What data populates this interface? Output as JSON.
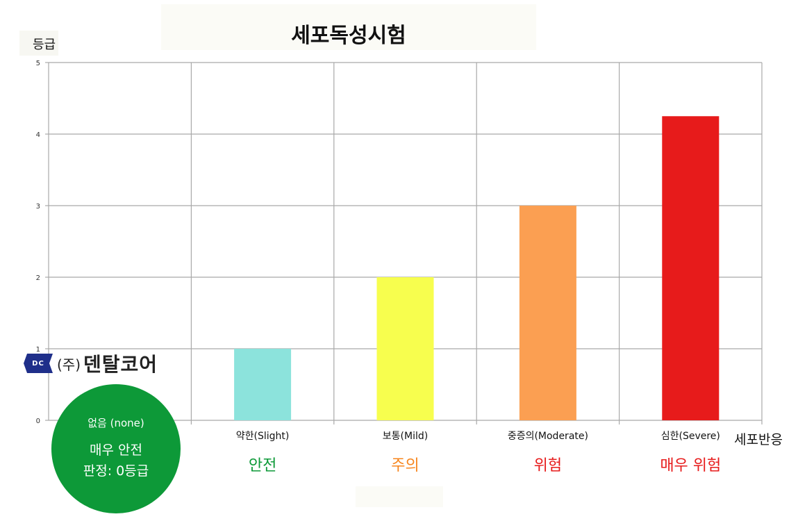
{
  "chart_data": {
    "type": "bar",
    "title": "세포독성시험",
    "ylabel": "등급",
    "xlabel": "세포반응",
    "ylim": [
      0,
      5
    ],
    "yticks": [
      "0",
      "1",
      "2",
      "3",
      "4",
      "5"
    ],
    "grid": true,
    "categories": [
      "없음 (none)",
      "약한(Slight)",
      "보통(Mild)",
      "중증의(Moderate)",
      "심한(Severe)"
    ],
    "values": [
      0,
      1,
      2,
      3,
      4.25
    ],
    "colors": [
      "#0d9938",
      "#8ce3dc",
      "#f7fe4e",
      "#fb9f52",
      "#e71b1b"
    ],
    "verdicts": [
      {
        "text": "안전",
        "color": "#0d9938"
      },
      {
        "text": "주의",
        "color": "#f7861e"
      },
      {
        "text": "위험",
        "color": "#e71b1b"
      },
      {
        "text": "매우 위험",
        "color": "#e71b1b"
      }
    ]
  },
  "badge": {
    "sub": "없음 (none)",
    "line1": "매우 안전",
    "line2": "판정: 0등급"
  },
  "logo": {
    "mark": "DC",
    "paren": "(주)",
    "name": "덴탈코어"
  }
}
